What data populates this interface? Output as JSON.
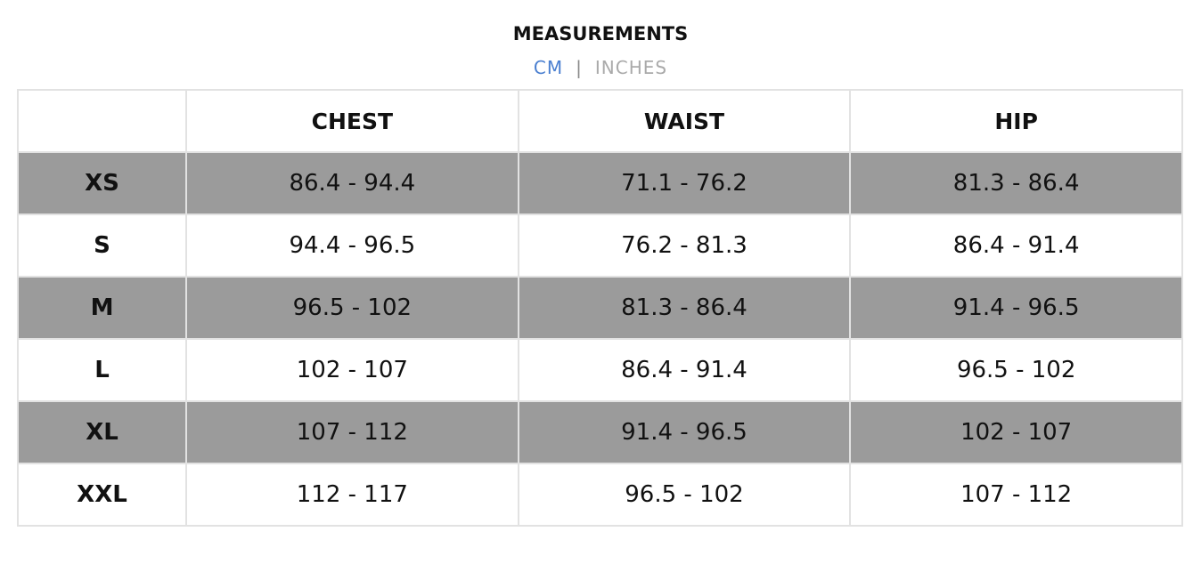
{
  "header": {
    "title": "MEASUREMENTS",
    "units": [
      "CM",
      "|",
      "INCHES"
    ]
  },
  "table": {
    "columns": [
      "",
      "CHEST",
      "WAIST",
      "HIP"
    ],
    "rows": [
      [
        "XS",
        "86.4 - 94.4",
        "71.1 - 76.2",
        "81.3 - 86.4"
      ],
      [
        "S",
        "94.4 - 96.5",
        "76.2 - 81.3",
        "86.4 - 91.4"
      ],
      [
        "M",
        "96.5 - 102",
        "81.3 - 86.4",
        "91.4 - 96.5"
      ],
      [
        "L",
        "102 - 107",
        "86.4 - 91.4",
        "96.5 - 102"
      ],
      [
        "XL",
        "107 - 112",
        "91.4 - 96.5",
        "102 - 107"
      ],
      [
        "XXL",
        "112 - 117",
        "96.5 - 102",
        "107 - 112"
      ]
    ]
  }
}
